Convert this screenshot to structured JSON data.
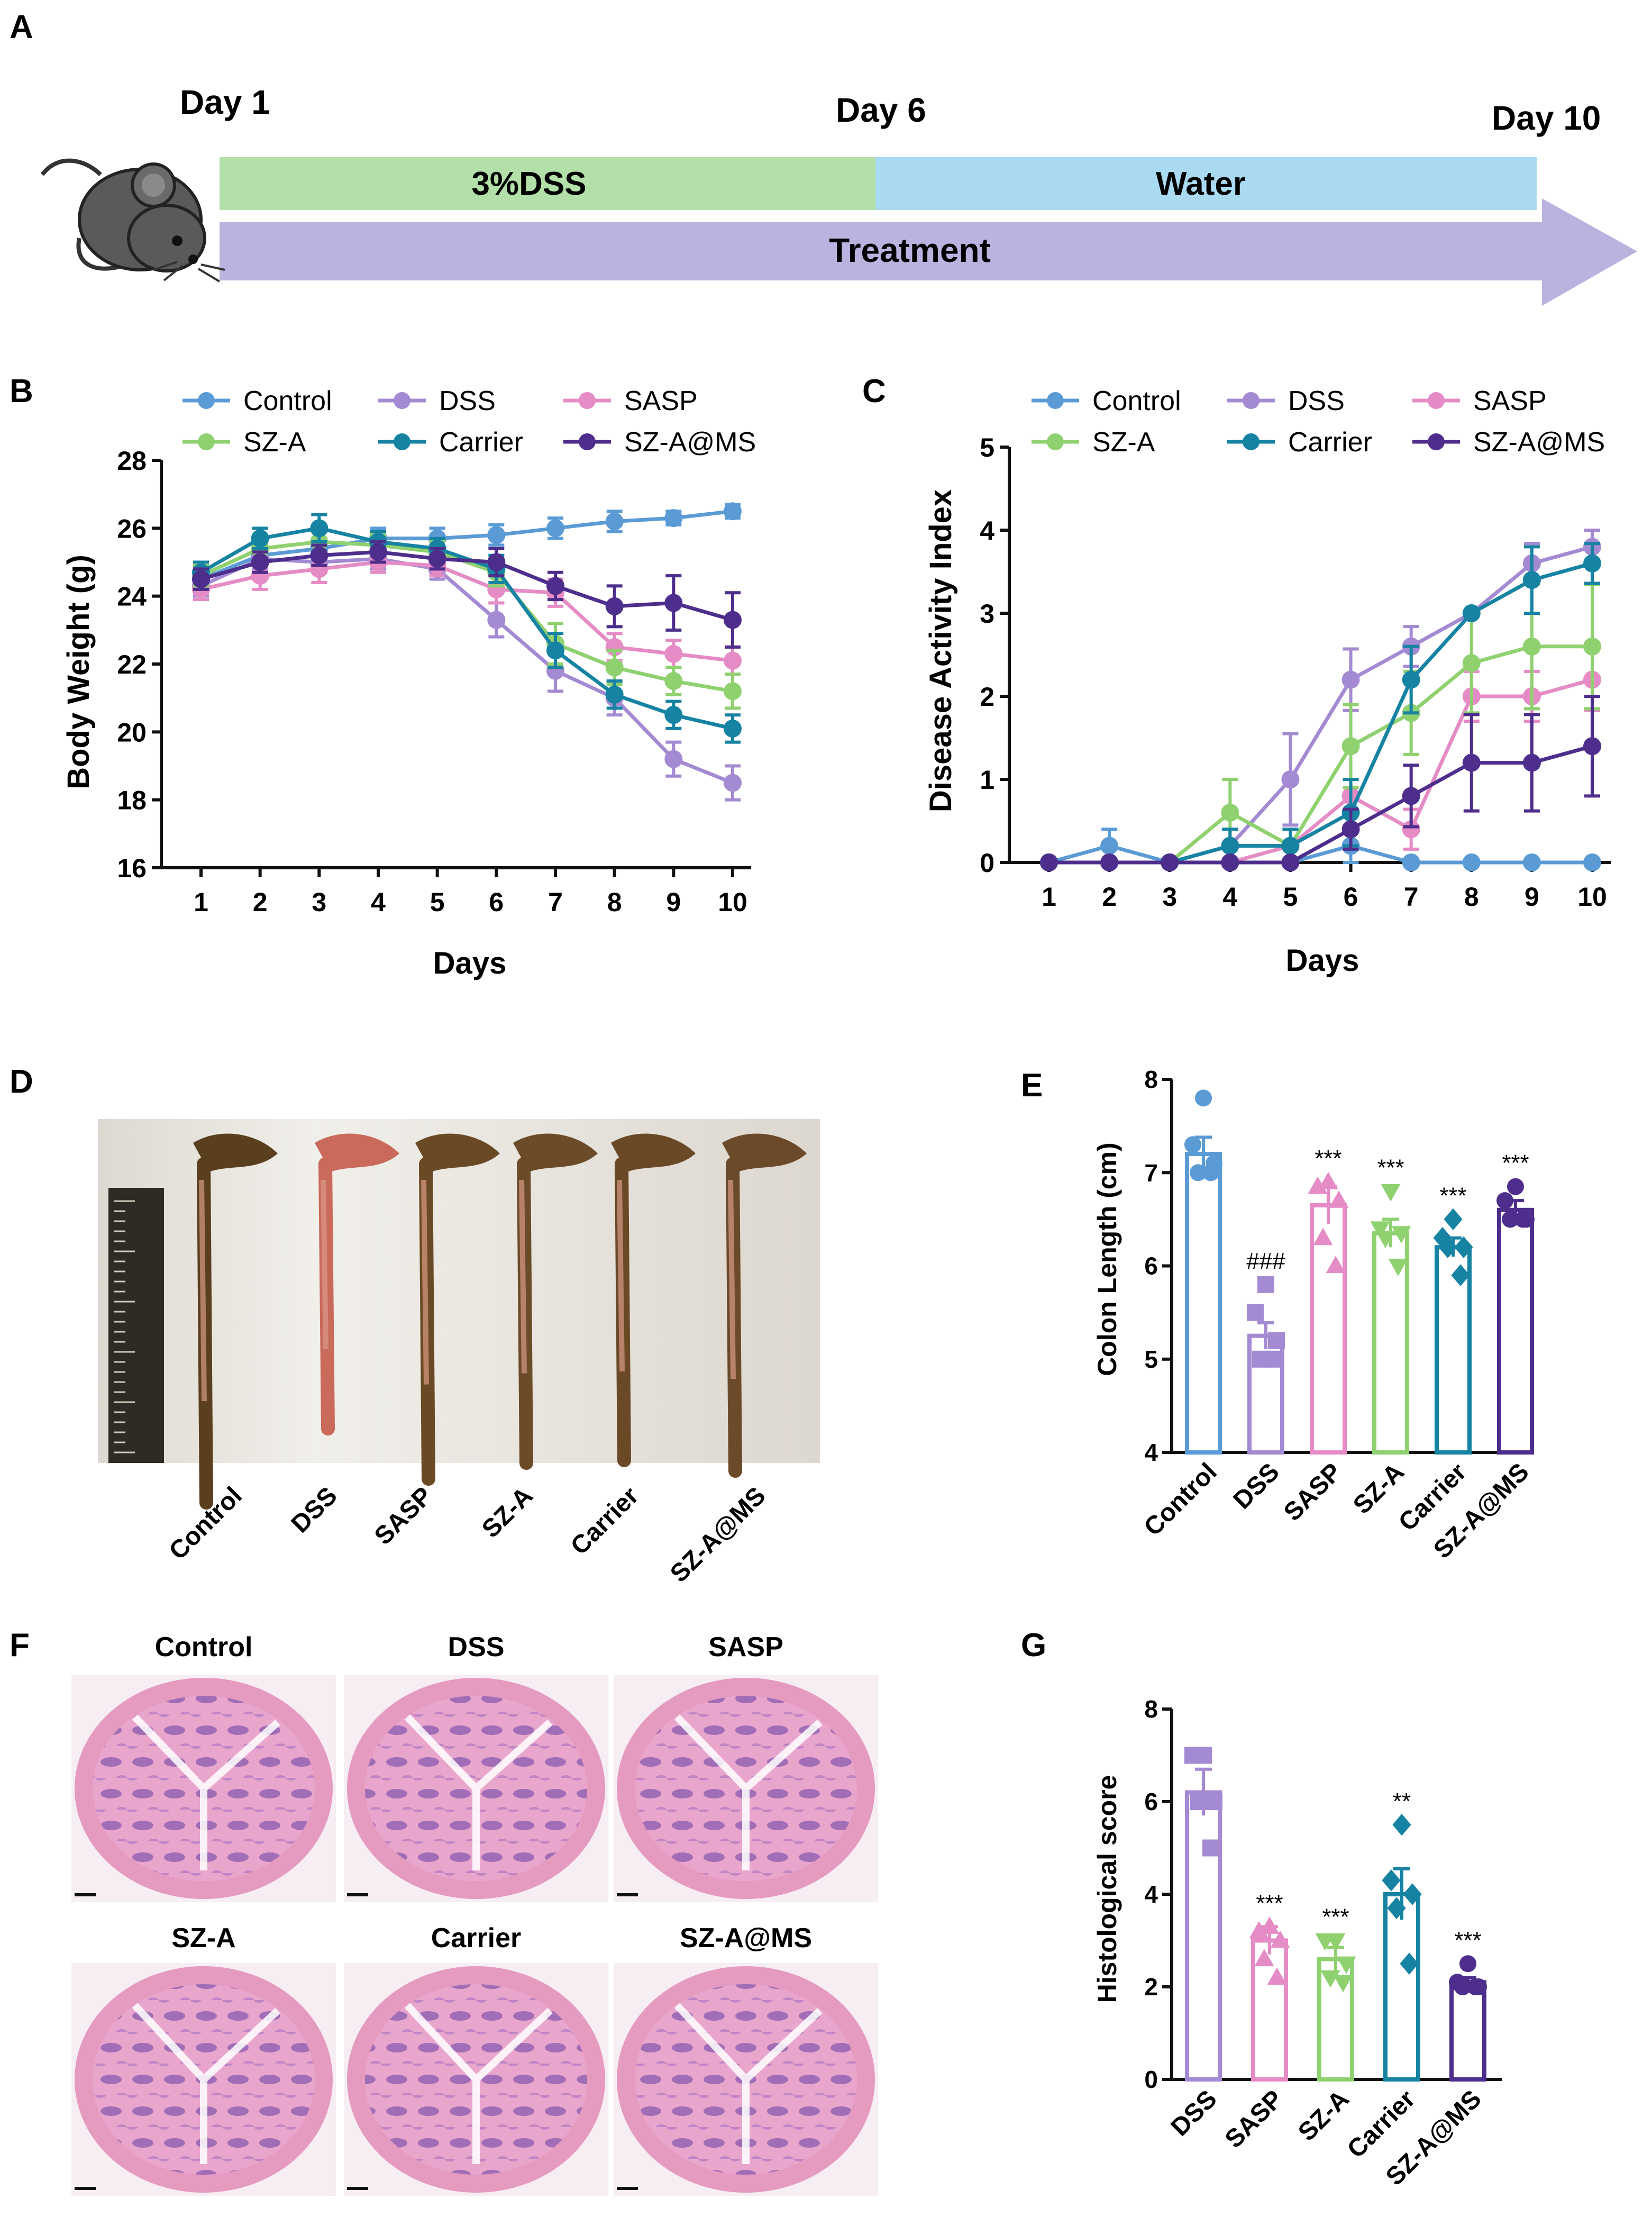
{
  "colors": {
    "Control": "#5b9bd5",
    "DSS": "#a48ad2",
    "SASP": "#e58bc5",
    "SZ-A": "#8fd16f",
    "Carrier": "#1783a3",
    "SZ-A@MS": "#4e2e8c",
    "dss_bar": "#b3e0a8",
    "water_bar": "#a9daf2",
    "treatment_bar": "#b9b3df"
  },
  "panelA": {
    "label": "A",
    "day1": "Day 1",
    "day6": "Day 6",
    "day10": "Day 10",
    "dss_label": "3%DSS",
    "water_label": "Water",
    "treatment_label": "Treatment",
    "icon": "mouse-icon"
  },
  "chart_data": [
    {
      "id": "B",
      "type": "line",
      "panel_label": "B",
      "xlabel": "Days",
      "ylabel": "Body Weight (g)",
      "x": [
        1,
        2,
        3,
        4,
        5,
        6,
        7,
        8,
        9,
        10
      ],
      "ylim": [
        16,
        28
      ],
      "yticks": [
        16,
        18,
        20,
        22,
        24,
        26,
        28
      ],
      "legend": [
        "Control",
        "DSS",
        "SASP",
        "SZ-A",
        "Carrier",
        "SZ-A@MS"
      ],
      "series": [
        {
          "name": "Control",
          "values": [
            24.5,
            25.2,
            25.4,
            25.7,
            25.7,
            25.8,
            26.0,
            26.2,
            26.3,
            26.5
          ],
          "err": [
            0.2,
            0.3,
            0.3,
            0.3,
            0.3,
            0.3,
            0.3,
            0.3,
            0.2,
            0.2
          ]
        },
        {
          "name": "DSS",
          "values": [
            24.3,
            25.1,
            25.0,
            25.1,
            24.8,
            23.3,
            21.8,
            21.0,
            19.2,
            18.5
          ],
          "err": [
            0.3,
            0.3,
            0.3,
            0.3,
            0.3,
            0.5,
            0.6,
            0.5,
            0.5,
            0.5
          ]
        },
        {
          "name": "SASP",
          "values": [
            24.2,
            24.6,
            24.8,
            25.0,
            24.9,
            24.2,
            24.1,
            22.5,
            22.3,
            22.1
          ],
          "err": [
            0.3,
            0.4,
            0.4,
            0.3,
            0.3,
            0.4,
            0.4,
            0.4,
            0.4,
            0.4
          ]
        },
        {
          "name": "SZ-A",
          "values": [
            24.6,
            25.4,
            25.6,
            25.5,
            25.3,
            24.7,
            22.6,
            21.9,
            21.5,
            21.2
          ],
          "err": [
            0.3,
            0.3,
            0.3,
            0.3,
            0.3,
            0.4,
            0.6,
            0.5,
            0.4,
            0.5
          ]
        },
        {
          "name": "Carrier",
          "values": [
            24.7,
            25.7,
            26.0,
            25.6,
            25.4,
            24.8,
            22.4,
            21.1,
            20.5,
            20.1
          ],
          "err": [
            0.3,
            0.3,
            0.4,
            0.3,
            0.3,
            0.4,
            0.5,
            0.4,
            0.4,
            0.4
          ]
        },
        {
          "name": "SZ-A@MS",
          "values": [
            24.5,
            25.0,
            25.2,
            25.3,
            25.1,
            25.0,
            24.3,
            23.7,
            23.8,
            23.3
          ],
          "err": [
            0.3,
            0.3,
            0.3,
            0.3,
            0.3,
            0.4,
            0.4,
            0.6,
            0.8,
            0.8
          ]
        }
      ]
    },
    {
      "id": "C",
      "type": "line",
      "panel_label": "C",
      "xlabel": "Days",
      "ylabel": "Disease Activity Index",
      "x": [
        1,
        2,
        3,
        4,
        5,
        6,
        7,
        8,
        9,
        10
      ],
      "ylim": [
        0,
        5
      ],
      "yticks": [
        0,
        1,
        2,
        3,
        4,
        5
      ],
      "legend": [
        "Control",
        "DSS",
        "SASP",
        "SZ-A",
        "Carrier",
        "SZ-A@MS"
      ],
      "series": [
        {
          "name": "Control",
          "values": [
            0,
            0.2,
            0,
            0,
            0,
            0.2,
            0,
            0,
            0,
            0
          ],
          "err": [
            0,
            0.2,
            0,
            0,
            0,
            0.2,
            0,
            0,
            0,
            0
          ]
        },
        {
          "name": "DSS",
          "values": [
            0,
            0,
            0,
            0.2,
            1.0,
            2.2,
            2.6,
            3.0,
            3.6,
            3.8
          ],
          "err": [
            0,
            0,
            0,
            0.2,
            0.55,
            0.37,
            0.24,
            0,
            0.24,
            0.2
          ]
        },
        {
          "name": "SASP",
          "values": [
            0,
            0,
            0,
            0,
            0.2,
            0.8,
            0.4,
            2.0,
            2.0,
            2.2
          ],
          "err": [
            0,
            0,
            0,
            0,
            0.2,
            0.2,
            0.24,
            0.3,
            0.3,
            0.37
          ]
        },
        {
          "name": "SZ-A",
          "values": [
            0,
            0,
            0,
            0.6,
            0.2,
            1.4,
            1.8,
            2.4,
            2.6,
            2.6
          ],
          "err": [
            0,
            0,
            0,
            0.4,
            0.2,
            0.5,
            0.5,
            0.6,
            0.75,
            0.75
          ]
        },
        {
          "name": "Carrier",
          "values": [
            0,
            0,
            0,
            0.2,
            0.2,
            0.6,
            2.2,
            3.0,
            3.4,
            3.6
          ],
          "err": [
            0,
            0,
            0,
            0.2,
            0.2,
            0.4,
            0.4,
            0,
            0.4,
            0.24
          ]
        },
        {
          "name": "SZ-A@MS",
          "values": [
            0,
            0,
            0,
            0,
            0,
            0.4,
            0.8,
            1.2,
            1.2,
            1.4
          ],
          "err": [
            0,
            0,
            0,
            0,
            0,
            0.24,
            0.37,
            0.58,
            0.58,
            0.6
          ]
        }
      ]
    },
    {
      "id": "E",
      "type": "bar",
      "panel_label": "E",
      "ylabel": "Colon Length (cm)",
      "categories": [
        "Control",
        "DSS",
        "SASP",
        "SZ-A",
        "Carrier",
        "SZ-A@MS"
      ],
      "values": [
        7.2,
        5.25,
        6.65,
        6.35,
        6.2,
        6.6
      ],
      "err": [
        0.18,
        0.14,
        0.2,
        0.15,
        0.1,
        0.1
      ],
      "ylim": [
        4,
        8
      ],
      "yticks": [
        4,
        5,
        6,
        7,
        8
      ],
      "annotations": [
        "",
        "###",
        "***",
        "***",
        "***",
        "***"
      ],
      "points": [
        [
          7.8,
          7.3,
          7.1,
          7.0,
          7.0
        ],
        [
          5.8,
          5.5,
          5.2,
          5.0,
          5.0
        ],
        [
          6.9,
          6.85,
          6.7,
          6.3,
          6.0
        ],
        [
          6.8,
          6.4,
          6.35,
          6.3,
          6.0
        ],
        [
          6.5,
          6.3,
          6.2,
          6.2,
          5.9
        ],
        [
          6.85,
          6.7,
          6.5,
          6.5,
          6.5
        ]
      ],
      "markers": [
        "circle",
        "square",
        "triangle-up",
        "triangle-down",
        "diamond",
        "circle"
      ]
    },
    {
      "id": "G",
      "type": "bar",
      "panel_label": "G",
      "ylabel": "Histological score",
      "categories": [
        "DSS",
        "SASP",
        "SZ-A",
        "Carrier",
        "SZ-A@MS"
      ],
      "values": [
        6.2,
        3.0,
        2.6,
        4.0,
        2.1
      ],
      "err": [
        0.5,
        0.3,
        0.25,
        0.55,
        0.1
      ],
      "ylim": [
        0,
        8
      ],
      "yticks": [
        0,
        2,
        4,
        6,
        8
      ],
      "annotations": [
        "",
        "***",
        "***",
        "**",
        "***"
      ],
      "points": [
        [
          7.0,
          7.0,
          6.0,
          6.0,
          5.0
        ],
        [
          3.3,
          3.2,
          3.0,
          2.6,
          2.2
        ],
        [
          3.0,
          3.0,
          2.5,
          2.2,
          2.1
        ],
        [
          5.5,
          4.3,
          4.0,
          3.7,
          2.5
        ],
        [
          2.5,
          2.1,
          2.0,
          2.0,
          2.0
        ]
      ],
      "markers": [
        "square",
        "triangle-up",
        "triangle-down",
        "diamond",
        "circle"
      ]
    }
  ],
  "panelD": {
    "label": "D",
    "image_caption": "colon-specimens-photo",
    "labels": [
      "Control",
      "DSS",
      "SASP",
      "SZ-A",
      "Carrier",
      "SZ-A@MS"
    ]
  },
  "panelF": {
    "label": "F",
    "image_caption": "hne-histology-micrographs",
    "titles": [
      "Control",
      "DSS",
      "SASP",
      "SZ-A",
      "Carrier",
      "SZ-A@MS"
    ]
  }
}
